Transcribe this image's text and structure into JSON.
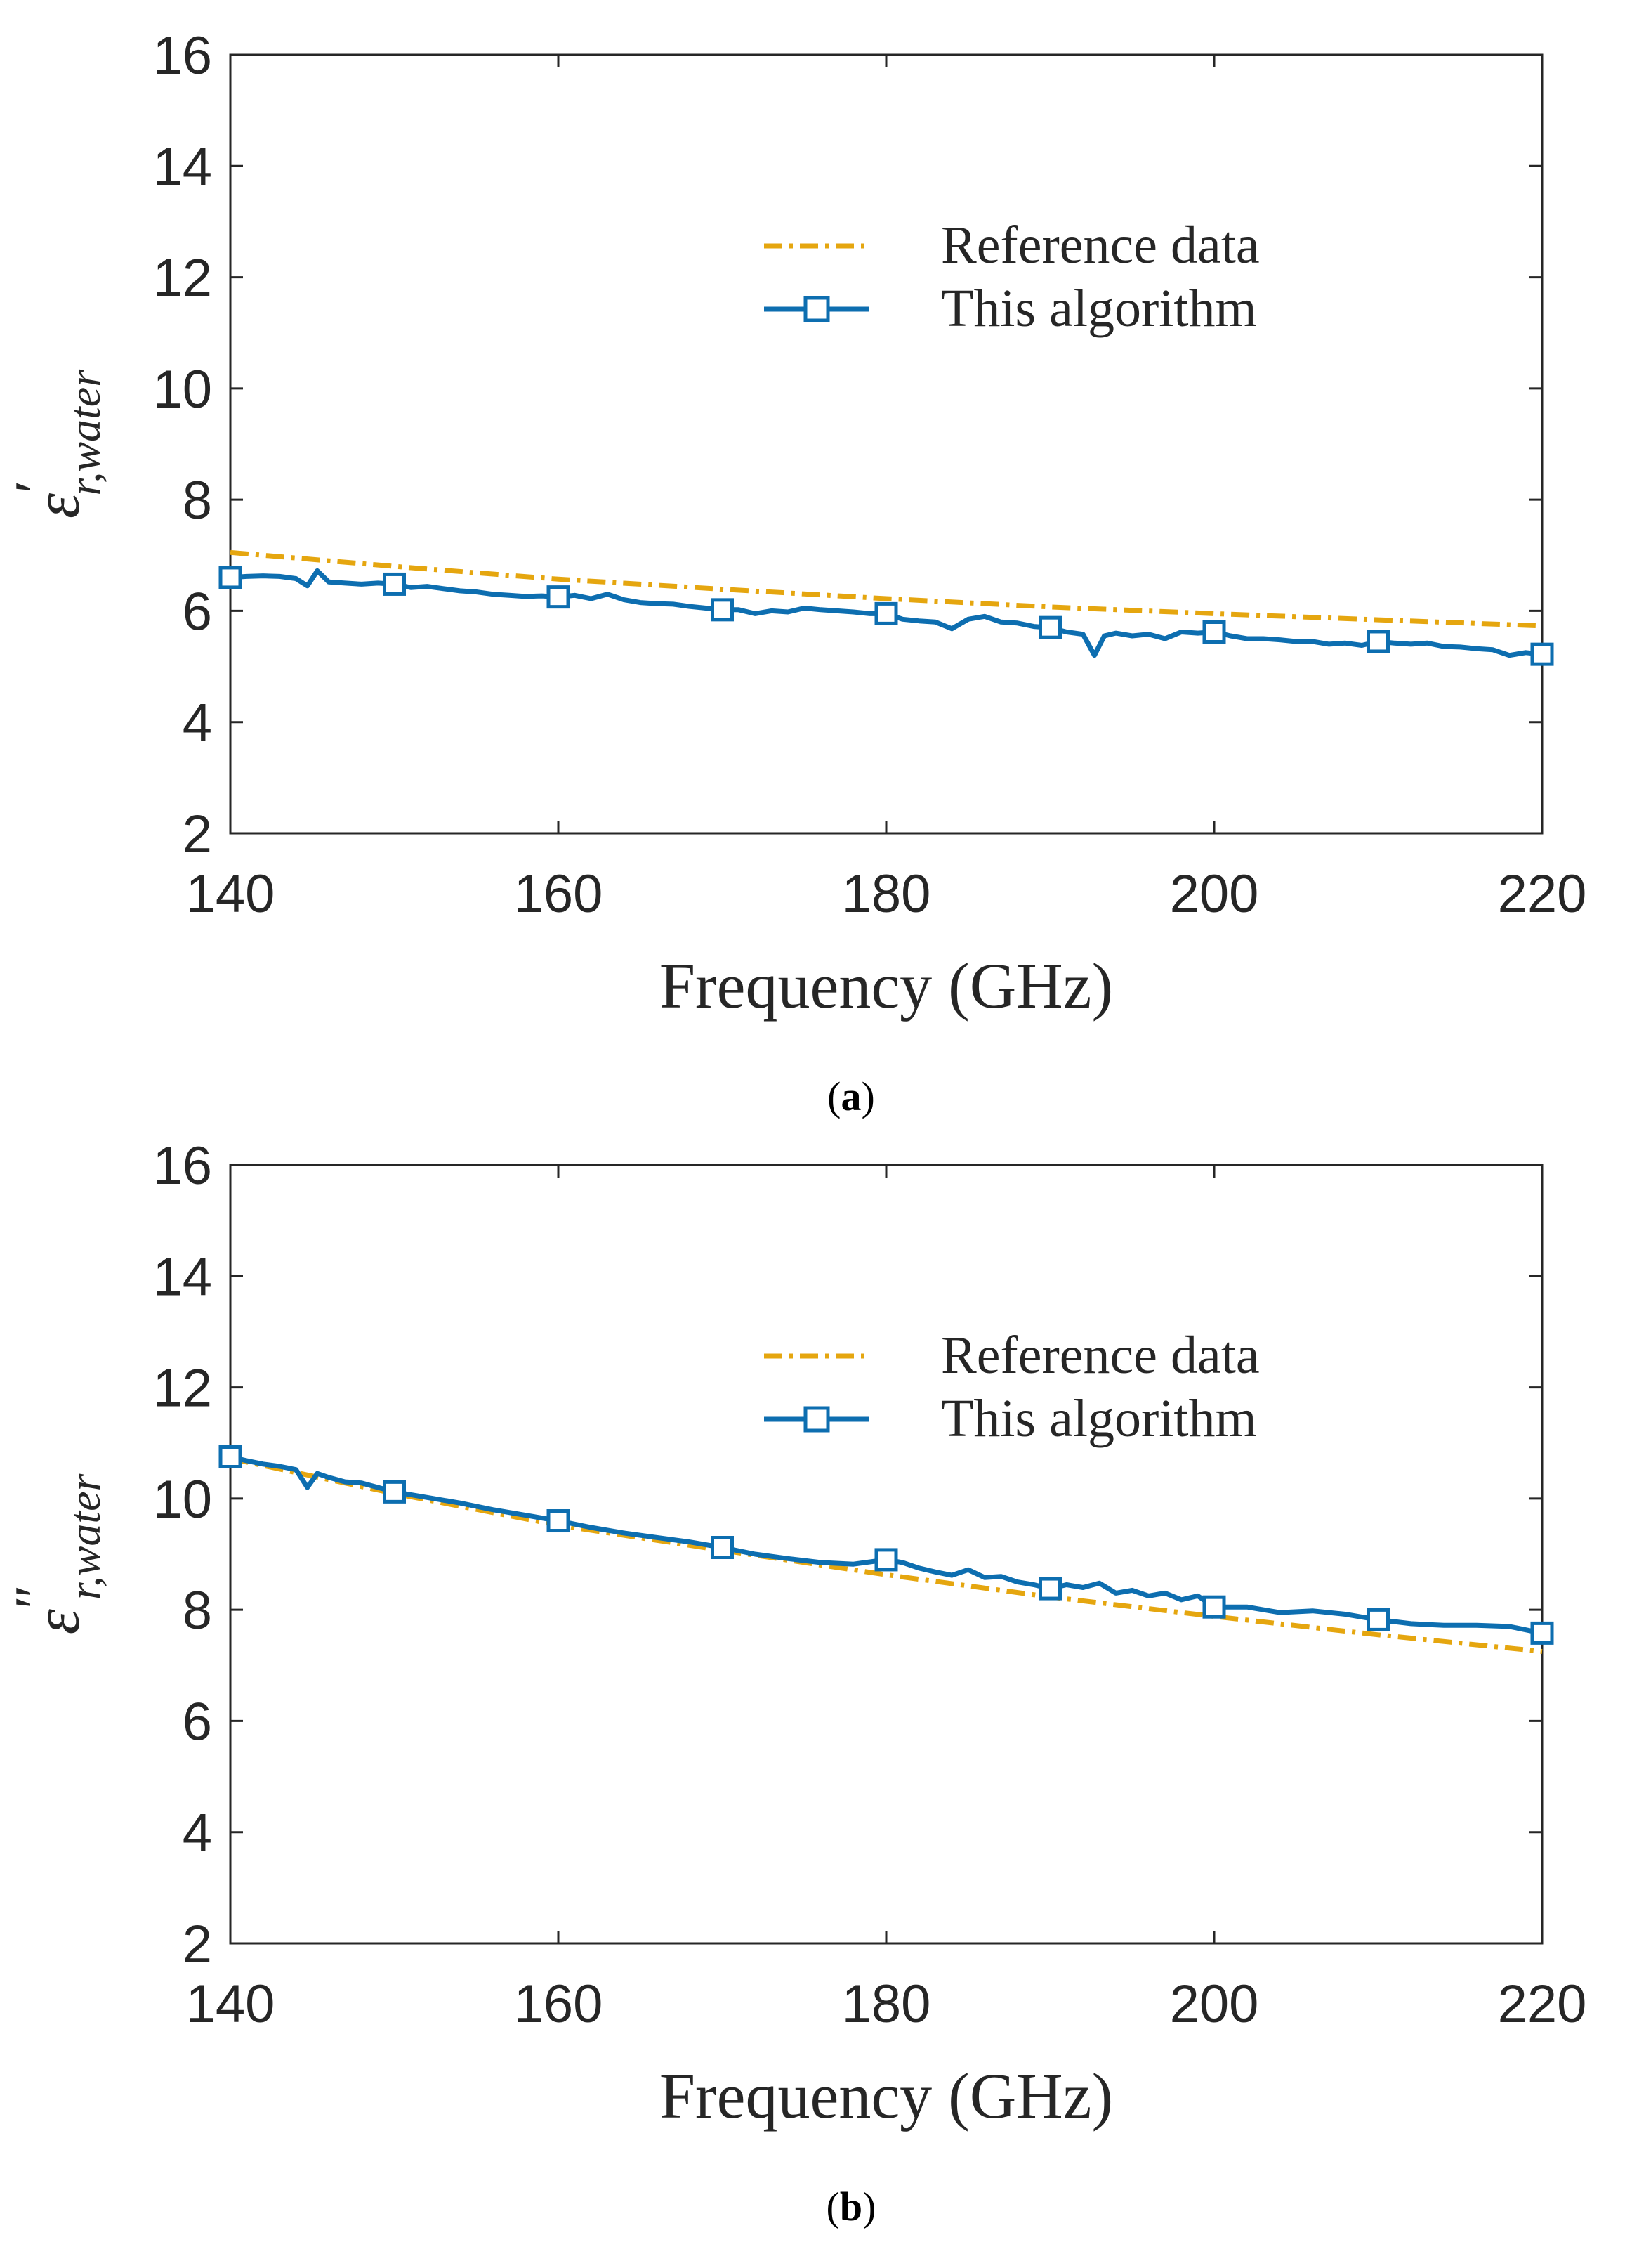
{
  "chart_data": [
    {
      "type": "line",
      "panel": "a",
      "caption": "(a)",
      "xlabel": "Frequency (GHz)",
      "ylabel": {
        "base": "ε",
        "prime": "′",
        "sub": "r,water"
      },
      "xlim": [
        140,
        220
      ],
      "ylim": [
        2,
        16
      ],
      "xticks": [
        "140",
        "160",
        "180",
        "200",
        "220"
      ],
      "yticks": [
        "2",
        "4",
        "6",
        "8",
        "10",
        "12",
        "14",
        "16"
      ],
      "legend_position": "upper-center",
      "series": [
        {
          "name": "Reference data",
          "style": "dash-dot",
          "color": "#E5A60F",
          "x": [
            140,
            150,
            160,
            170,
            180,
            190,
            200,
            210,
            220
          ],
          "y": [
            7.05,
            6.8,
            6.57,
            6.39,
            6.22,
            6.07,
            5.95,
            5.84,
            5.73
          ]
        },
        {
          "name": "This algorithm",
          "style": "solid-square-markers",
          "color": "#0D6EB0",
          "x": [
            140,
            141,
            142,
            143,
            144,
            144.7,
            145.3,
            146,
            147,
            148,
            149,
            150,
            151,
            152,
            153,
            154,
            155,
            156,
            157,
            158,
            159,
            160,
            161,
            162,
            163,
            164,
            165,
            166,
            167,
            168,
            169,
            170,
            171,
            172,
            173,
            174,
            175,
            176,
            177,
            178,
            179,
            180,
            181,
            182,
            183,
            184,
            185,
            186,
            187,
            188,
            189,
            190,
            191,
            192,
            192.7,
            193.3,
            194,
            195,
            196,
            197,
            198,
            199,
            200,
            201,
            202,
            203,
            204,
            205,
            206,
            207,
            208,
            209,
            210,
            211,
            212,
            213,
            214,
            215,
            216,
            217,
            218,
            219,
            220
          ],
          "y": [
            6.6,
            6.62,
            6.63,
            6.62,
            6.58,
            6.45,
            6.72,
            6.52,
            6.5,
            6.48,
            6.5,
            6.48,
            6.42,
            6.44,
            6.4,
            6.36,
            6.34,
            6.3,
            6.28,
            6.26,
            6.27,
            6.25,
            6.28,
            6.22,
            6.3,
            6.2,
            6.15,
            6.13,
            6.12,
            6.08,
            6.05,
            6.02,
            6.02,
            5.95,
            6.0,
            5.98,
            6.05,
            6.02,
            6.0,
            5.98,
            5.95,
            5.95,
            5.85,
            5.82,
            5.8,
            5.68,
            5.85,
            5.9,
            5.8,
            5.78,
            5.72,
            5.7,
            5.62,
            5.58,
            5.2,
            5.55,
            5.6,
            5.55,
            5.58,
            5.5,
            5.62,
            5.6,
            5.62,
            5.55,
            5.5,
            5.5,
            5.48,
            5.45,
            5.45,
            5.4,
            5.42,
            5.38,
            5.45,
            5.42,
            5.4,
            5.42,
            5.36,
            5.35,
            5.32,
            5.3,
            5.2,
            5.25,
            5.22
          ]
        }
      ]
    },
    {
      "type": "line",
      "panel": "b",
      "caption": "(b)",
      "xlabel": "Frequency (GHz)",
      "ylabel": {
        "base": "ε",
        "prime": "″",
        "sub": "r,water"
      },
      "xlim": [
        140,
        220
      ],
      "ylim": [
        2,
        16
      ],
      "xticks": [
        "140",
        "160",
        "180",
        "200",
        "220"
      ],
      "yticks": [
        "2",
        "4",
        "6",
        "8",
        "10",
        "12",
        "14",
        "16"
      ],
      "legend_position": "upper-center",
      "series": [
        {
          "name": "Reference data",
          "style": "dash-dot",
          "color": "#E5A60F",
          "x": [
            140,
            150,
            160,
            170,
            180,
            190,
            200,
            210,
            220
          ],
          "y": [
            10.72,
            10.09,
            9.52,
            9.07,
            8.63,
            8.23,
            7.88,
            7.55,
            7.25
          ]
        },
        {
          "name": "This algorithm",
          "style": "solid-square-markers",
          "color": "#0D6EB0",
          "x": [
            140,
            141,
            142,
            143,
            144,
            144.7,
            145.3,
            146,
            147,
            148,
            149,
            150,
            152,
            154,
            156,
            158,
            160,
            162,
            164,
            166,
            168,
            170,
            172,
            174,
            176,
            178,
            180,
            181,
            182,
            183,
            184,
            185,
            186,
            187,
            188,
            189,
            190,
            191,
            192,
            193,
            194,
            195,
            196,
            197,
            198,
            199,
            200,
            202,
            204,
            206,
            208,
            210,
            212,
            214,
            216,
            218,
            220
          ],
          "y": [
            10.75,
            10.68,
            10.62,
            10.58,
            10.52,
            10.2,
            10.45,
            10.38,
            10.3,
            10.28,
            10.2,
            10.12,
            10.02,
            9.92,
            9.8,
            9.7,
            9.6,
            9.48,
            9.38,
            9.3,
            9.22,
            9.12,
            9.0,
            8.92,
            8.85,
            8.82,
            8.9,
            8.85,
            8.75,
            8.68,
            8.62,
            8.72,
            8.58,
            8.6,
            8.5,
            8.45,
            8.38,
            8.45,
            8.4,
            8.48,
            8.3,
            8.35,
            8.25,
            8.3,
            8.18,
            8.25,
            8.05,
            8.05,
            7.95,
            7.98,
            7.92,
            7.82,
            7.75,
            7.72,
            7.72,
            7.7,
            7.58
          ]
        }
      ]
    }
  ]
}
